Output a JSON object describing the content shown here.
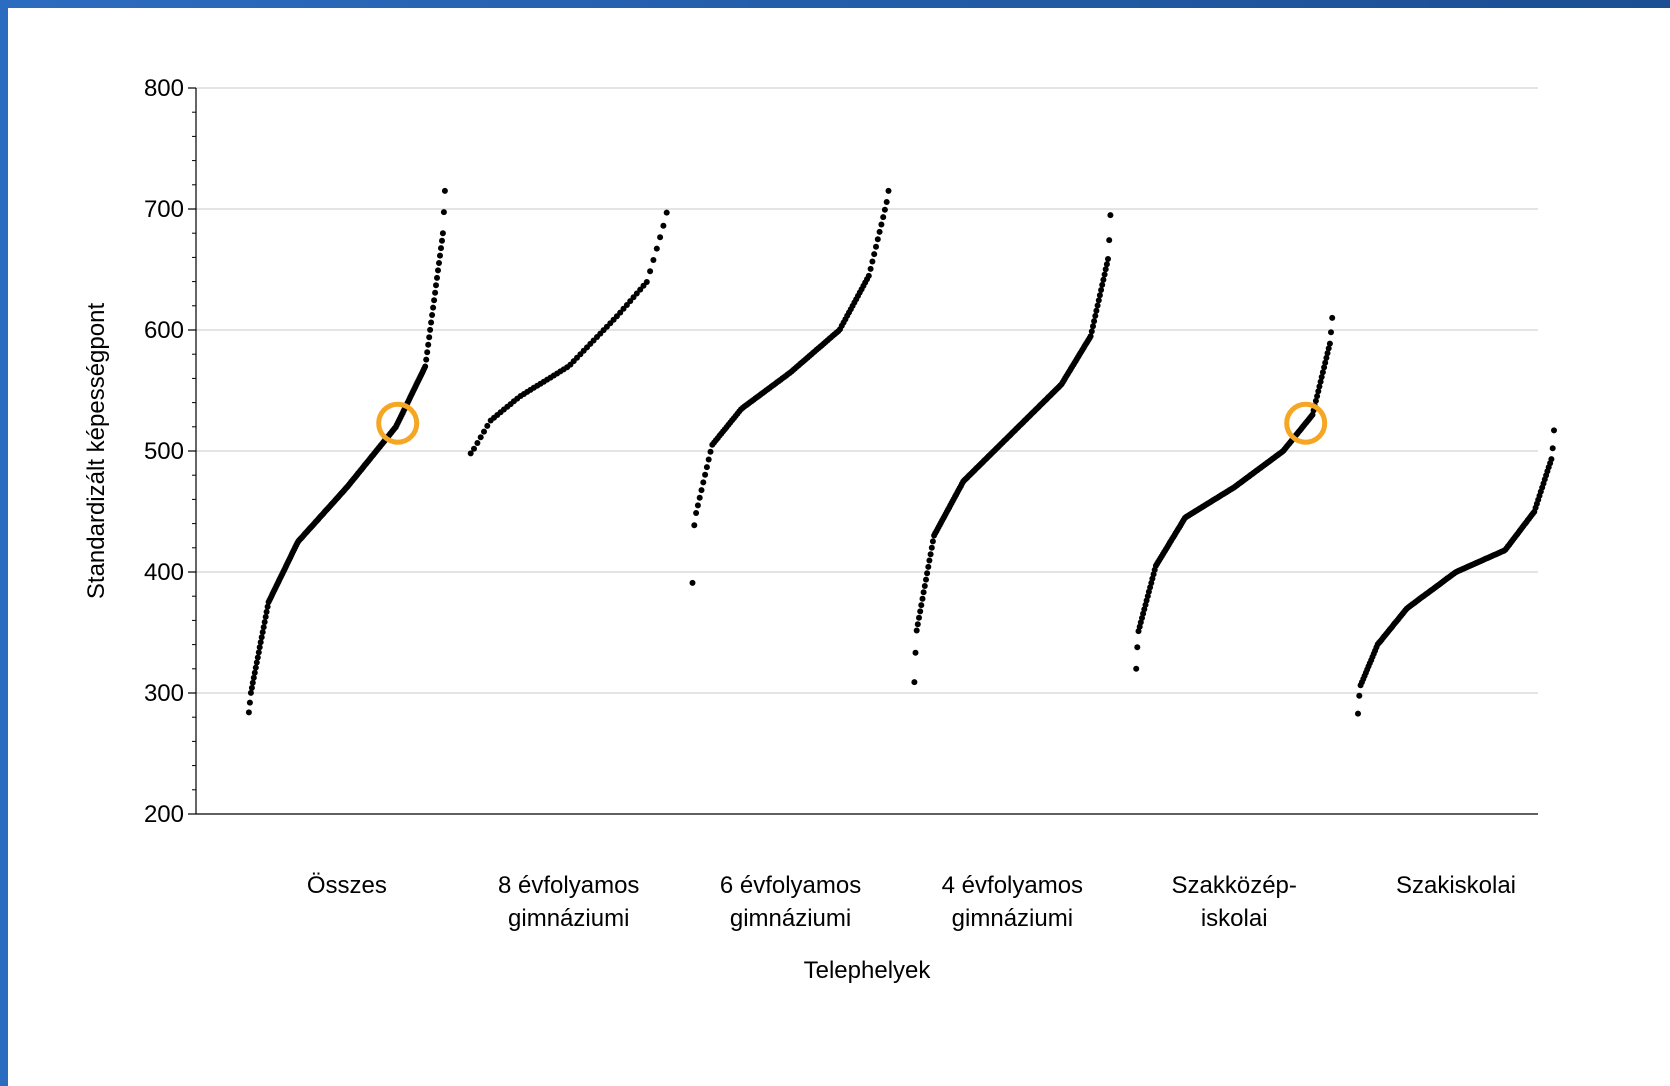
{
  "chart_data": {
    "type": "scatter",
    "title": "",
    "xlabel": "Telephelyek",
    "ylabel": "Standardizált képességpont",
    "ylim": [
      200,
      800
    ],
    "yticks": [
      200,
      300,
      400,
      500,
      600,
      700,
      800
    ],
    "ytick_labels": [
      "200",
      "300",
      "400",
      "500",
      "600",
      "700",
      "800"
    ],
    "grid": true,
    "legend": "none",
    "colors": {
      "points": "#000000",
      "highlight": "#f5a623",
      "grid": "#c8c8c8",
      "frame_accent": "#1f5fa8"
    },
    "categories": [
      {
        "label_lines": [
          "Összes"
        ]
      },
      {
        "label_lines": [
          "8 évfolyamos",
          "gimnáziumi"
        ]
      },
      {
        "label_lines": [
          "6 évfolyamos",
          "gimnáziumi"
        ]
      },
      {
        "label_lines": [
          "4 évfolyamos",
          "gimnáziumi"
        ]
      },
      {
        "label_lines": [
          "Szakközép-",
          "iskolai"
        ]
      },
      {
        "label_lines": [
          "Szakiskolai"
        ]
      }
    ],
    "series": [
      {
        "category": 0,
        "points": 200,
        "min": 284,
        "p1": 300,
        "p10": 375,
        "p25": 425,
        "p50": 470,
        "p75": 520,
        "p90": 570,
        "p99": 680,
        "max": 715,
        "highlight": 523
      },
      {
        "category": 1,
        "points": 60,
        "min": 498,
        "p1": 500,
        "p10": 525,
        "p25": 545,
        "p50": 570,
        "p75": 612,
        "p90": 640,
        "p99": 690,
        "max": 697
      },
      {
        "category": 2,
        "points": 110,
        "min": 391,
        "p1": 443,
        "p10": 505,
        "p25": 535,
        "p50": 565,
        "p75": 600,
        "p90": 645,
        "p99": 705,
        "max": 715
      },
      {
        "category": 3,
        "points": 170,
        "min": 309,
        "p1": 350,
        "p10": 430,
        "p25": 475,
        "p50": 515,
        "p75": 555,
        "p90": 595,
        "p99": 660,
        "max": 695
      },
      {
        "category": 4,
        "points": 170,
        "min": 320,
        "p1": 350,
        "p10": 405,
        "p25": 445,
        "p50": 470,
        "p75": 500,
        "p90": 530,
        "p99": 590,
        "max": 610,
        "highlight": 523
      },
      {
        "category": 5,
        "points": 150,
        "min": 283,
        "p1": 305,
        "p10": 340,
        "p25": 370,
        "p50": 400,
        "p75": 418,
        "p90": 450,
        "p99": 495,
        "max": 517
      }
    ]
  }
}
